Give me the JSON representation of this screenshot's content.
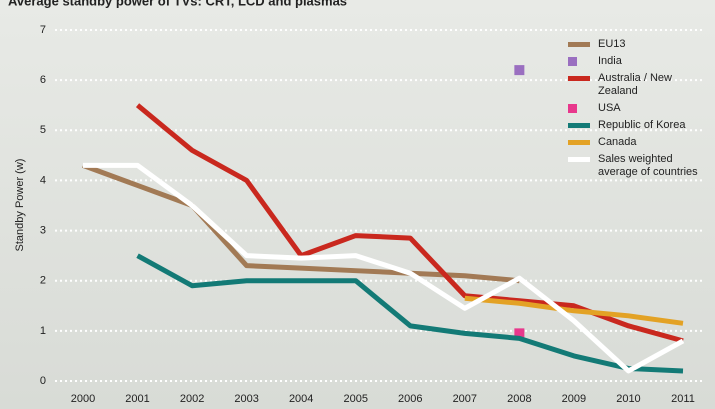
{
  "chart_data": {
    "type": "line",
    "title": "Average standby power of TVs: CRT, LCD and plasmas",
    "y_label": "Standby Power (w)",
    "x": [
      "2000",
      "2001",
      "2002",
      "2003",
      "2004",
      "2005",
      "2006",
      "2007",
      "2008",
      "2009",
      "2010",
      "2011"
    ],
    "ylim": [
      0,
      7
    ],
    "yticks": [
      0,
      1,
      2,
      3,
      4,
      5,
      6,
      7
    ],
    "grid": true,
    "legend": "right",
    "series": [
      {
        "name": "EU13",
        "color": "#a27a55",
        "values": [
          4.3,
          3.9,
          3.5,
          2.3,
          2.25,
          2.2,
          2.15,
          2.1,
          2.0,
          null,
          null,
          null
        ]
      },
      {
        "name": "India",
        "color": "#9a6fc0",
        "marker": "square",
        "values": [
          null,
          null,
          null,
          null,
          null,
          null,
          null,
          null,
          6.2,
          null,
          null,
          null
        ]
      },
      {
        "name": "Australia / New Zealand",
        "color": "#c9281e",
        "values": [
          null,
          5.5,
          4.6,
          4.0,
          2.5,
          2.9,
          2.85,
          1.7,
          1.6,
          1.5,
          1.1,
          0.8
        ]
      },
      {
        "name": "USA",
        "color": "#e8388c",
        "marker": "square",
        "values": [
          null,
          null,
          null,
          null,
          null,
          null,
          null,
          null,
          0.95,
          null,
          null,
          null
        ]
      },
      {
        "name": "Republic of Korea",
        "color": "#137a76",
        "values": [
          null,
          2.5,
          1.9,
          2.0,
          2.0,
          2.0,
          1.1,
          0.95,
          0.85,
          0.5,
          0.25,
          0.2
        ]
      },
      {
        "name": "Canada",
        "color": "#e3a225",
        "values": [
          null,
          null,
          null,
          null,
          null,
          null,
          null,
          1.65,
          1.55,
          1.4,
          1.3,
          1.15
        ]
      },
      {
        "name": "Sales weighted average of countries",
        "color": "#ffffff",
        "values": [
          4.3,
          4.3,
          3.5,
          2.5,
          2.45,
          2.5,
          2.15,
          1.45,
          2.05,
          1.2,
          0.2,
          0.8
        ]
      }
    ]
  }
}
